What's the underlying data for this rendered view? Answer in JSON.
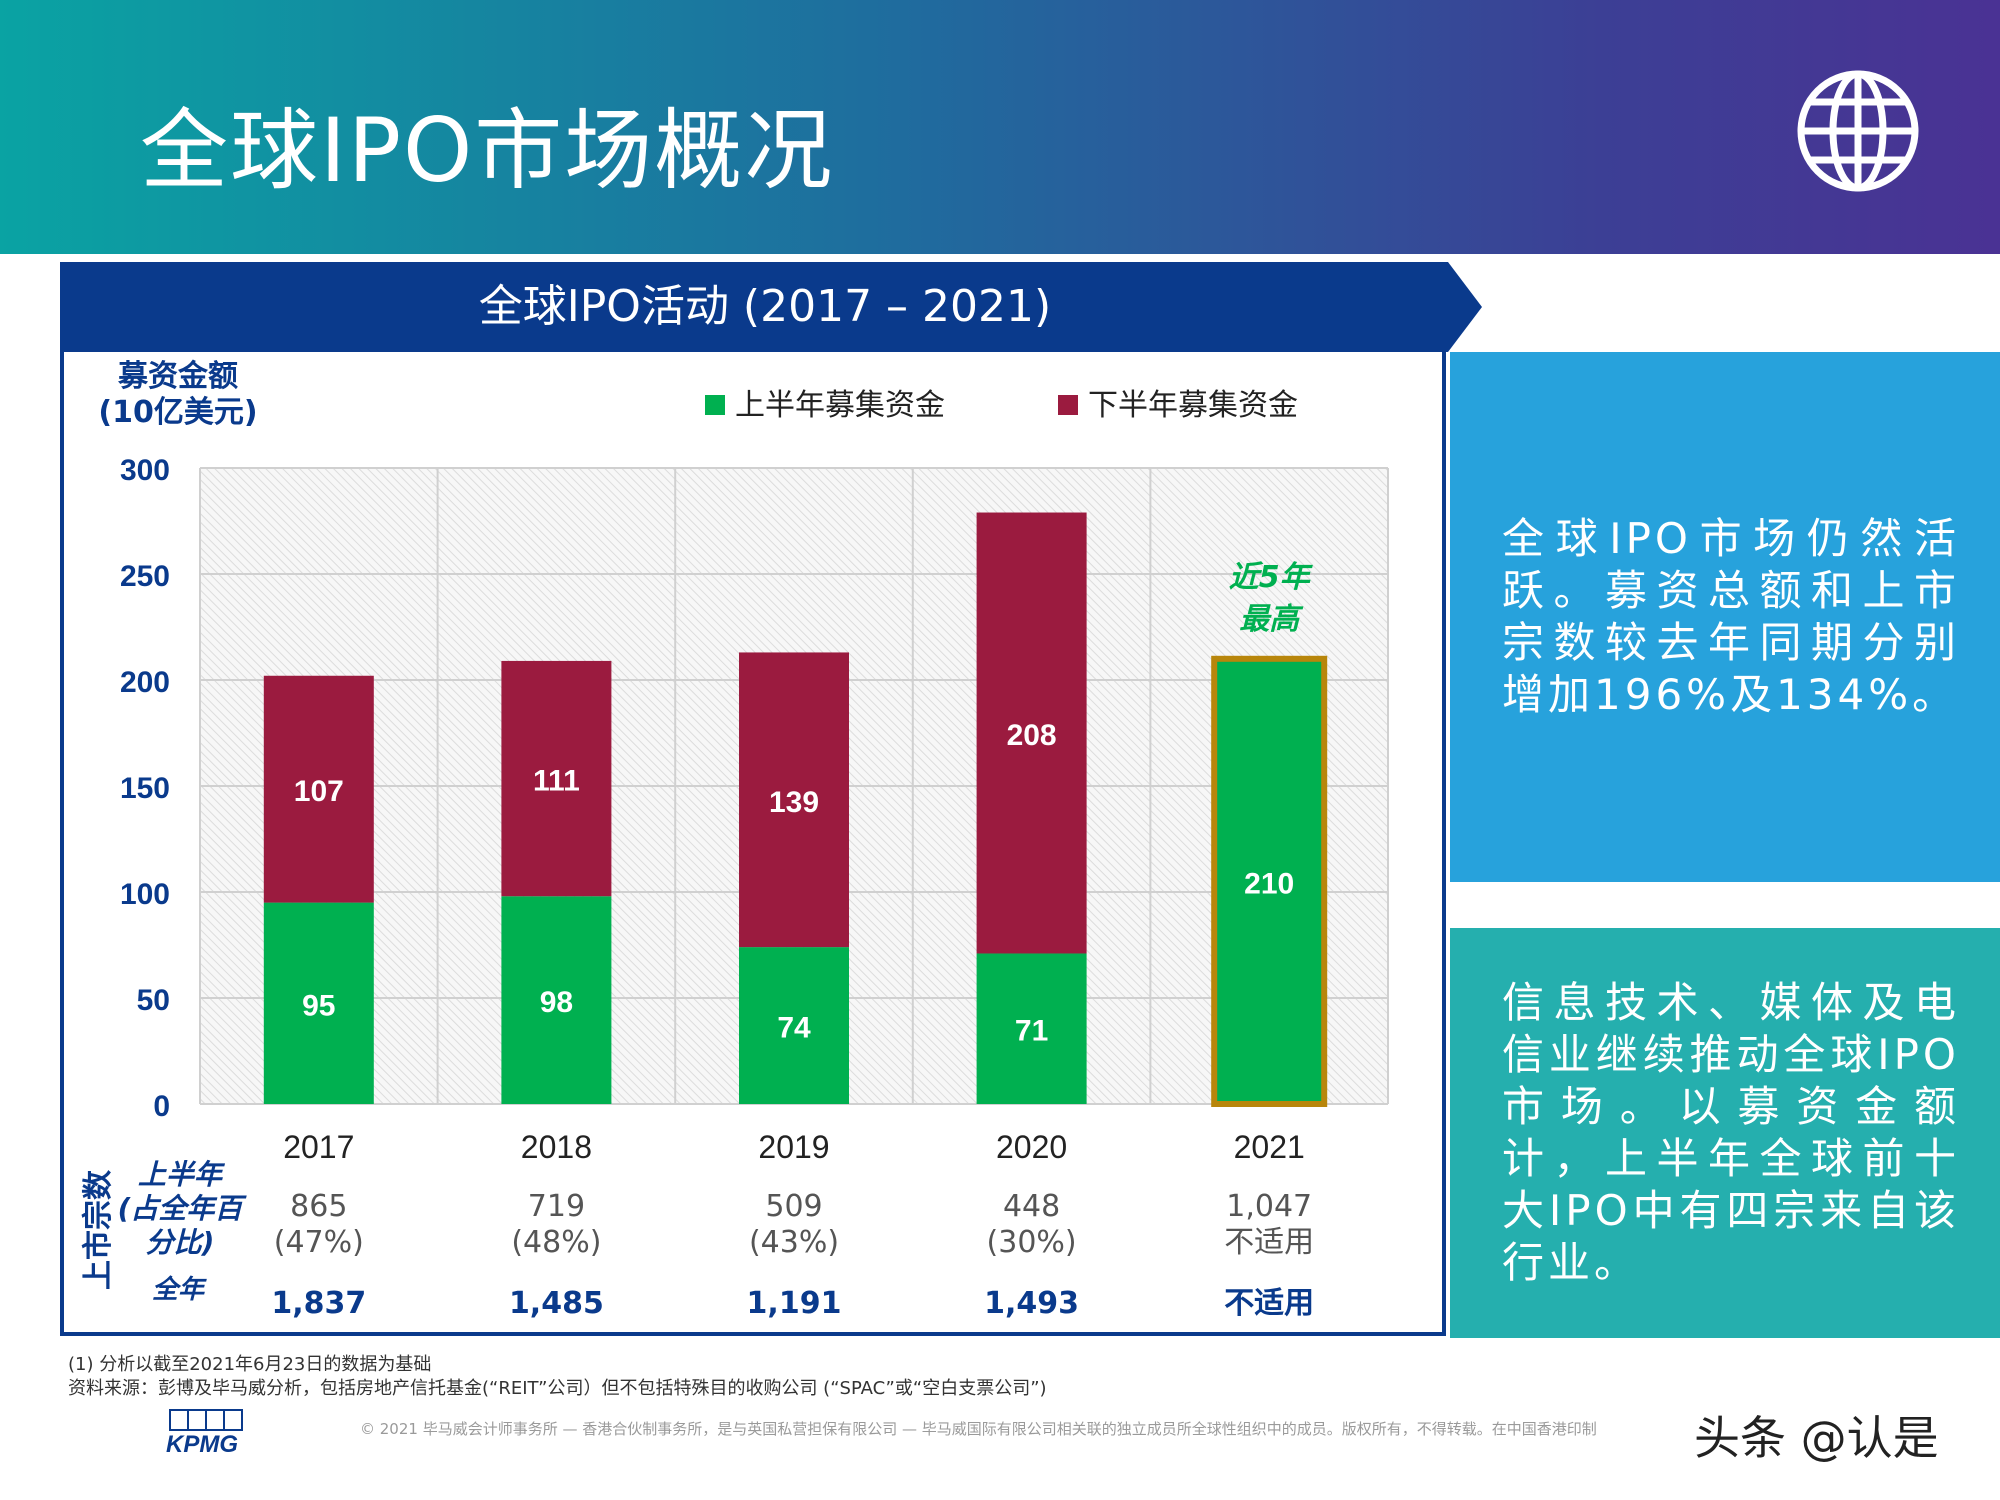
{
  "page": {
    "title": "全球IPO市场概况",
    "icon": "globe-icon"
  },
  "chart_data": {
    "type": "bar",
    "stacked": true,
    "title": "全球IPO活动 (2017 – 2021)",
    "ylabel_line1": "募资金额",
    "ylabel_line2": "(10亿美元)",
    "ylim": [
      0,
      300
    ],
    "yticks": [
      0,
      50,
      100,
      150,
      200,
      250,
      300
    ],
    "categories": [
      "2017",
      "2018",
      "2019",
      "2020",
      "2021"
    ],
    "series": [
      {
        "name": "上半年募集资金",
        "color": "#00b050",
        "values": [
          95,
          98,
          74,
          71,
          210
        ]
      },
      {
        "name": "下半年募集资金",
        "color": "#9b1b3f",
        "values": [
          107,
          111,
          139,
          208,
          null
        ]
      }
    ],
    "highlight": {
      "category": "2021",
      "border_color": "#b8860b",
      "annotation_line1": "近5年",
      "annotation_line2": "最高",
      "annotation_color": "#00b050"
    },
    "legend_position": "top",
    "grid": true
  },
  "listings": {
    "axis_label": "上市宗数",
    "h1_label_line1": "上半年",
    "h1_label_line2": "(占全年百",
    "h1_label_line3": "分比)",
    "full_year_label": "全年",
    "h1_counts": [
      "865",
      "719",
      "509",
      "448",
      "1,047"
    ],
    "h1_pcts": [
      "(47%)",
      "(48%)",
      "(43%)",
      "(30%)",
      "不适用"
    ],
    "full_year": [
      "1,837",
      "1,485",
      "1,191",
      "1,493",
      "不适用"
    ]
  },
  "panels": {
    "p1": "全球IPO市场仍然活跃。募资总额和上市宗数较去年同期分别增加196%及134%。",
    "p2": "信息技术、媒体及电信业继续推动全球IPO市场。以募资金额计，上半年全球前十大IPO中有四宗来自该行业。"
  },
  "footnotes": {
    "note1": "(1) 分析以截至2021年6月23日的数据为基础",
    "source": "资料来源：彭博及毕马威分析，包括房地产信托基金(“REIT”公司）但不包括特殊目的收购公司 (“SPAC”或“空白支票公司”)",
    "copyright": "© 2021 毕马威会计师事务所 — 香港合伙制事务所，是与英国私营担保有限公司 — 毕马威国际有限公司相关联的独立成员所全球性组织中的成员。版权所有，不得转载。在中国香港印制",
    "brand": "KPMG",
    "watermark": "头条 @认是"
  },
  "colors": {
    "navy": "#0a3a8c",
    "h1": "#00b050",
    "h2": "#9b1b3f",
    "axis": "#0a3a8c",
    "gold": "#b8860b"
  }
}
